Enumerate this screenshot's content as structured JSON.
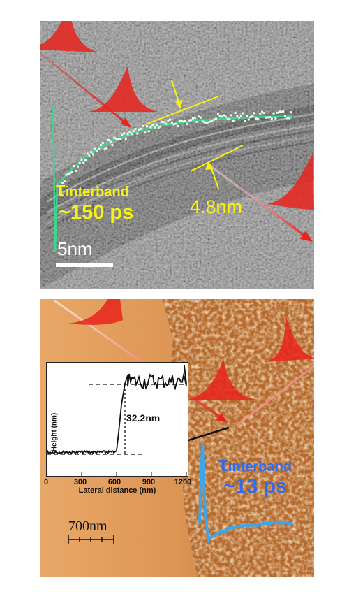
{
  "top_panel": {
    "tau_symbol": "τ",
    "tau_subscript": "interband",
    "lifetime": "~150 ps",
    "thickness": "4.8nm",
    "scale_bar": "5nm",
    "colors": {
      "label": "#f6f20f",
      "trace": "#3cd68c",
      "arrow": "#e8231c"
    }
  },
  "bottom_panel": {
    "tau_symbol": "τ",
    "tau_subscript": "interband",
    "lifetime": "~13 ps",
    "scale_bar": "700nm",
    "colors": {
      "label": "#2c6cf0",
      "trace": "#39a6ee",
      "arrow": "#e8231c"
    },
    "inset": {
      "ylabel": "Height (nm)",
      "xlabel": "Lateral  distance (nm)",
      "xticks": [
        "0",
        "300",
        "600",
        "900",
        "1200"
      ],
      "step_label": "32.2nm"
    }
  }
}
